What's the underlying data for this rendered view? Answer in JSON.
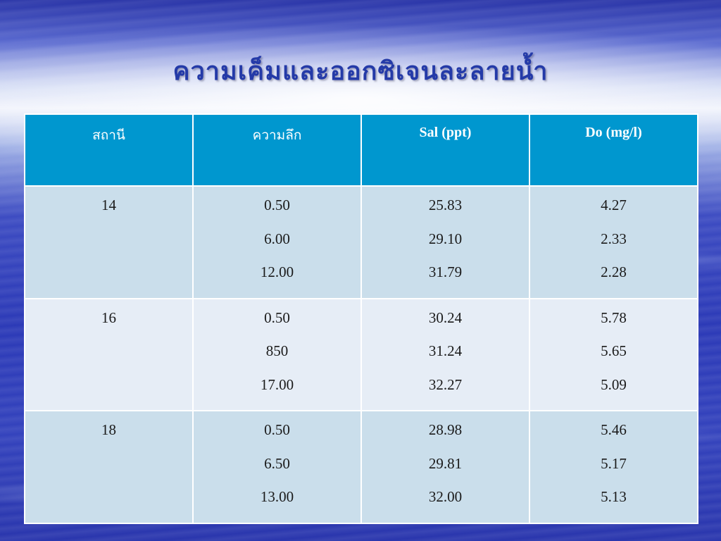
{
  "slide": {
    "title": "ความเค็มและออกซิเจนละลายน้ำ"
  },
  "table": {
    "headers": [
      "สถานี",
      "ความลึก",
      "Sal (ppt)",
      "Do (mg/l)"
    ],
    "rows": [
      {
        "station": "14",
        "depth": [
          "0.50",
          "6.00",
          "12.00"
        ],
        "sal": [
          "25.83",
          "29.10",
          "31.79"
        ],
        "do": [
          "4.27",
          "2.33",
          "2.28"
        ]
      },
      {
        "station": "16",
        "depth": [
          "0.50",
          "850",
          "17.00"
        ],
        "sal": [
          "30.24",
          "31.24",
          "32.27"
        ],
        "do": [
          "5.78",
          "5.65",
          "5.09"
        ]
      },
      {
        "station": "18",
        "depth": [
          "0.50",
          "6.50",
          "13.00"
        ],
        "sal": [
          "28.98",
          "29.81",
          "32.00"
        ],
        "do": [
          "5.46",
          "5.17",
          "5.13"
        ]
      }
    ]
  },
  "colors": {
    "header_bg": "#0097cf",
    "row_odd_bg": "#cadeeb",
    "row_even_bg": "#e6edf6",
    "title_color": "#243aa8"
  }
}
